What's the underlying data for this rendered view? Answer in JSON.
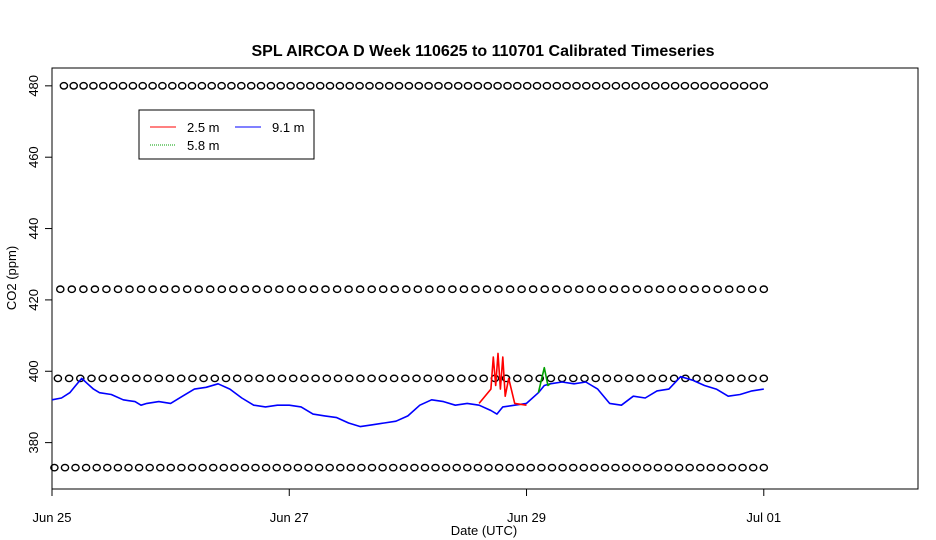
{
  "chart_data": {
    "type": "line",
    "title": "SPL AIRCOA D  Week 110625 to 110701  Calibrated Timeseries",
    "xlabel": "Date (UTC)",
    "ylabel": "CO2 (ppm)",
    "xlim": [
      0,
      7.3
    ],
    "ylim": [
      367,
      485
    ],
    "x_units": "days since Jun 25 00:00 UTC",
    "x_ticks": [
      {
        "value": 0,
        "label": "Jun 25"
      },
      {
        "value": 2,
        "label": "Jun 27"
      },
      {
        "value": 4,
        "label": "Jun 29"
      },
      {
        "value": 6,
        "label": "Jul 01"
      }
    ],
    "y_ticks": [
      {
        "value": 380,
        "label": "380"
      },
      {
        "value": 400,
        "label": "400"
      },
      {
        "value": 420,
        "label": "420"
      },
      {
        "value": 440,
        "label": "440"
      },
      {
        "value": 460,
        "label": "460"
      },
      {
        "value": 480,
        "label": "480"
      }
    ],
    "legend": {
      "placement": "top-left",
      "entries": [
        {
          "name": "2.5 m",
          "color": "#ff0000"
        },
        {
          "name": "5.8 m",
          "color": "#00a000"
        },
        {
          "name": "9.1 m",
          "color": "#0000ff"
        }
      ]
    },
    "series": [
      {
        "name": "9.1 m",
        "color": "#0000ff",
        "x": [
          0,
          0.08,
          0.15,
          0.2,
          0.25,
          0.3,
          0.35,
          0.4,
          0.5,
          0.6,
          0.7,
          0.75,
          0.8,
          0.9,
          1.0,
          1.1,
          1.2,
          1.3,
          1.4,
          1.5,
          1.6,
          1.7,
          1.8,
          1.9,
          2.0,
          2.1,
          2.2,
          2.3,
          2.4,
          2.5,
          2.6,
          2.7,
          2.8,
          2.9,
          3.0,
          3.1,
          3.2,
          3.3,
          3.4,
          3.5,
          3.6,
          3.7,
          3.75,
          3.8,
          3.9,
          4.0,
          4.1,
          4.15,
          4.2,
          4.3,
          4.4,
          4.5,
          4.6,
          4.7,
          4.8,
          4.9,
          5.0,
          5.1,
          5.2,
          5.3,
          5.4,
          5.5,
          5.6,
          5.7,
          5.8,
          5.9,
          6.0
        ],
        "values": [
          392,
          392.5,
          394,
          396,
          398,
          396.5,
          395,
          394,
          393.5,
          392,
          391.5,
          390.5,
          391,
          391.5,
          391,
          393,
          395,
          395.5,
          396.5,
          395,
          392.5,
          390.5,
          390,
          390.5,
          390.5,
          390,
          388,
          387.5,
          387,
          385.5,
          384.5,
          385,
          385.5,
          386,
          387.5,
          390.5,
          392,
          391.5,
          390.5,
          391,
          390.5,
          389,
          388,
          390,
          390.5,
          391,
          394,
          396,
          396.5,
          397,
          396.5,
          397,
          395,
          391,
          390.5,
          393,
          392.5,
          394.5,
          395,
          398.5,
          397.5,
          396,
          395,
          393,
          393.5,
          394.5,
          395
        ]
      },
      {
        "name": "2.5 m",
        "color": "#ff0000",
        "x": [
          3.6,
          3.65,
          3.7,
          3.72,
          3.74,
          3.76,
          3.78,
          3.8,
          3.82,
          3.85,
          3.9,
          4.0
        ],
        "values": [
          391,
          393,
          395,
          404,
          396,
          405,
          395,
          404,
          393,
          398,
          391,
          390.5
        ]
      },
      {
        "name": "5.8 m",
        "color": "#00a000",
        "x": [
          4.1,
          4.15,
          4.18,
          4.2
        ],
        "values": [
          394,
          401,
          396,
          396.5
        ]
      }
    ],
    "flag_rows": [
      {
        "y": 480,
        "x_start": 0.1,
        "x_end": 6.0,
        "count": 72
      },
      {
        "y": 423,
        "x_start": 0.07,
        "x_end": 6.0,
        "count": 62
      },
      {
        "y": 398,
        "x_start": 0.05,
        "x_end": 6.0,
        "count": 64
      },
      {
        "y": 373,
        "x_start": 0.02,
        "x_end": 6.0,
        "count": 68
      }
    ]
  }
}
